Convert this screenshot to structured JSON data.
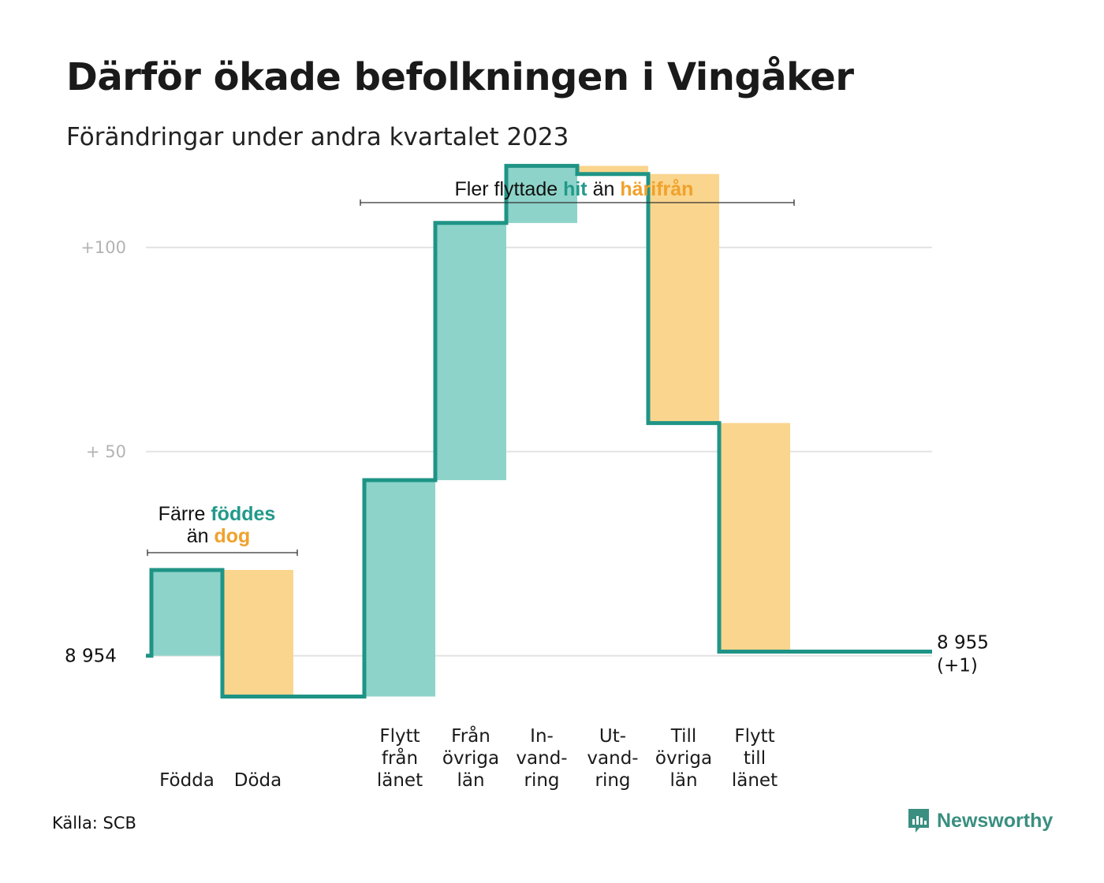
{
  "title": "Därför ökade befolkningen i Vingåker",
  "subtitle": "Förändringar under andra kvartalet 2023",
  "source": "Källa: SCB",
  "logo_text": "Newsworthy",
  "colors": {
    "in": "#8dd3c9",
    "out": "#fad58d",
    "line": "#1f9486",
    "grid": "#e3e3e3"
  },
  "annotations": {
    "births": {
      "line1_pre": "Färre",
      "line1_hl": "föddes",
      "line2_pre": "än",
      "line2_hl": "dog"
    },
    "migration": {
      "pre": "Fler flyttade",
      "hl1": "hit",
      "mid": "än",
      "hl2": "härifrån"
    }
  },
  "chart_data": {
    "type": "waterfall",
    "title": "Därför ökade befolkningen i Vingåker",
    "subtitle": "Förändringar under andra kvartalet 2023",
    "baseline": 8954,
    "baseline_label": "8  954",
    "end_value": 8955,
    "end_label": [
      "8 955",
      "(+1)"
    ],
    "y_ticks": [
      {
        "value": 0,
        "label": ""
      },
      {
        "value": 50,
        "label": "+  50"
      },
      {
        "value": 100,
        "label": "+100"
      }
    ],
    "ylim": [
      -13,
      122
    ],
    "grid": true,
    "steps": [
      {
        "label": [
          "Födda"
        ],
        "change": 21,
        "group": 0
      },
      {
        "label": [
          "Döda"
        ],
        "change": -31,
        "group": 0
      },
      {
        "label": [
          "Flytt",
          "från",
          "länet"
        ],
        "change": 53,
        "group": 1
      },
      {
        "label": [
          "Från",
          "övriga",
          "län"
        ],
        "change": 63,
        "group": 1
      },
      {
        "label": [
          "In-",
          "vand-",
          "ring"
        ],
        "change": 14,
        "group": 1
      },
      {
        "label": [
          "Ut-",
          "vand-",
          "ring"
        ],
        "change": -2,
        "group": 1
      },
      {
        "label": [
          "Till",
          "övriga",
          "län"
        ],
        "change": -61,
        "group": 1
      },
      {
        "label": [
          "Flytt",
          "till",
          "länet"
        ],
        "change": -56,
        "group": 1
      }
    ]
  }
}
